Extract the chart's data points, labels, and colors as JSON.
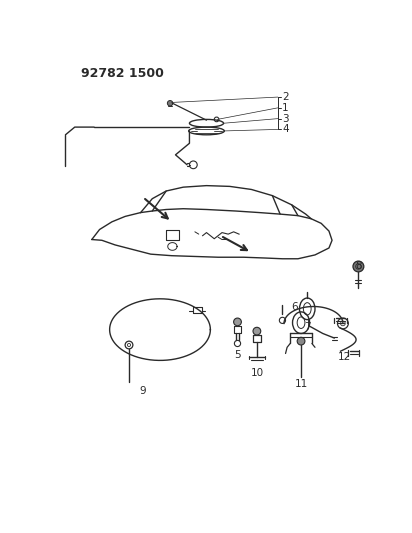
{
  "title": "92782 1500",
  "bg_color": "#ffffff",
  "lc": "#2a2a2a",
  "lw": 1.0,
  "figsize": [
    4.12,
    5.33
  ],
  "dpi": 100
}
